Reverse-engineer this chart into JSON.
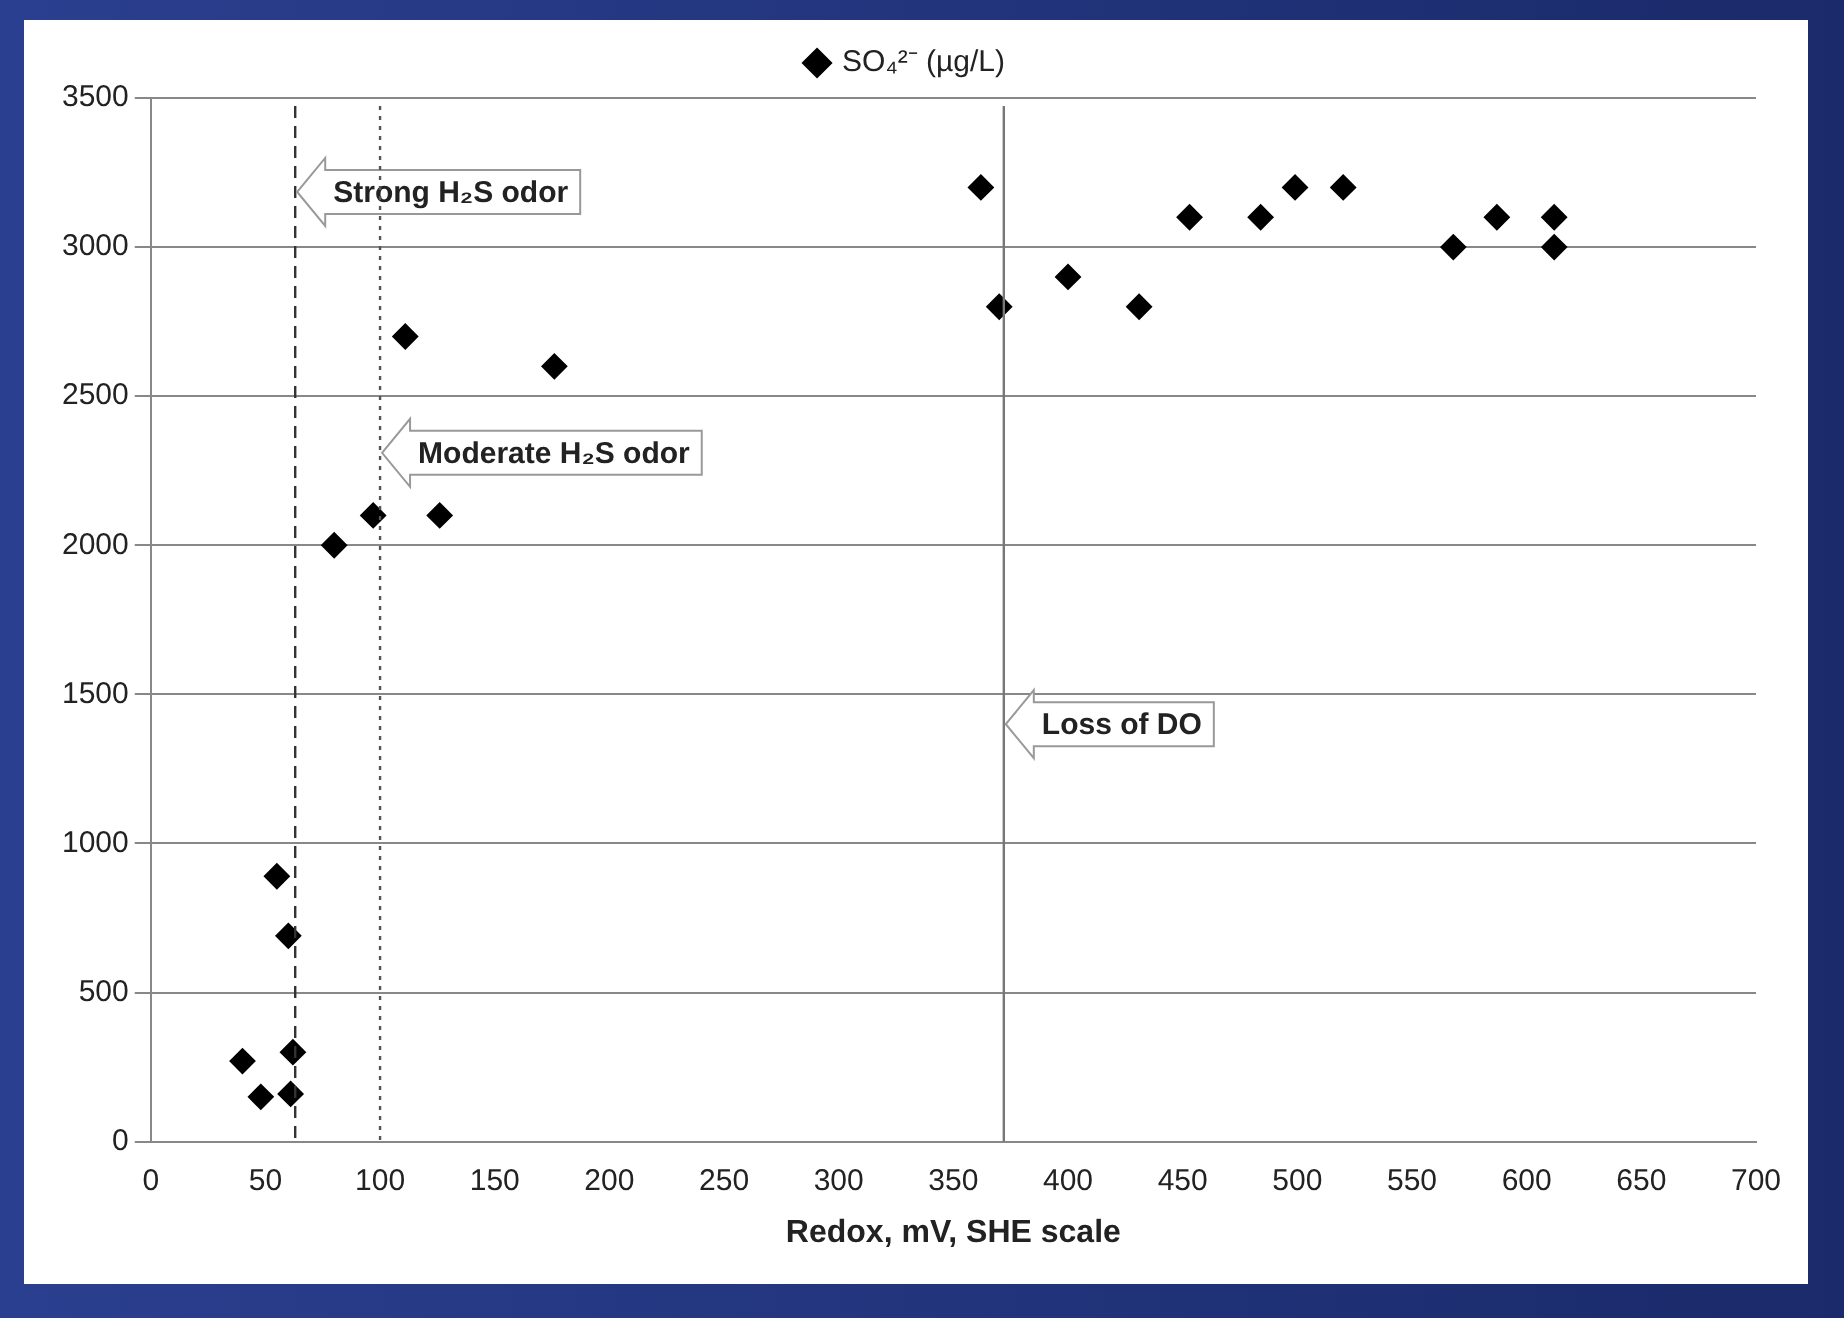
{
  "chart_data": {
    "type": "scatter",
    "xlabel": "Redox, mV, SHE scale",
    "x": [
      40,
      48,
      55,
      60,
      62,
      61,
      80,
      97,
      111,
      126,
      176,
      362,
      370,
      400,
      431,
      453,
      484,
      499,
      520,
      568,
      587,
      612,
      612
    ],
    "series": [
      {
        "name": "SO₄²⁻ (µg/L)",
        "color": "#000000",
        "values": [
          270,
          150,
          890,
          690,
          300,
          160,
          2000,
          2100,
          2700,
          2100,
          2600,
          3200,
          2800,
          2900,
          2800,
          3100,
          3100,
          3200,
          3200,
          3000,
          3100,
          3100,
          3000
        ]
      }
    ],
    "marker": "diamond",
    "legend": "top",
    "grid": "y",
    "xlim": [
      0,
      700
    ],
    "xticks": [
      0,
      50,
      100,
      150,
      200,
      250,
      300,
      350,
      400,
      450,
      500,
      550,
      600,
      650,
      700
    ],
    "ylim": [
      0,
      3500
    ],
    "yticks": [
      0,
      500,
      1000,
      1500,
      2000,
      2500,
      3000,
      3500
    ],
    "ref_lines": [
      {
        "axis": "x",
        "value": 63,
        "label": "Strong H₂S odor",
        "line_style": "dashed",
        "color": "#333333"
      },
      {
        "axis": "x",
        "value": 100,
        "label": "Moderate H₂S odor",
        "line_style": "dotted",
        "color": "#555555"
      },
      {
        "axis": "x",
        "value": 372,
        "label": "Loss of DO",
        "line_style": "solid",
        "color": "#777777"
      }
    ]
  }
}
